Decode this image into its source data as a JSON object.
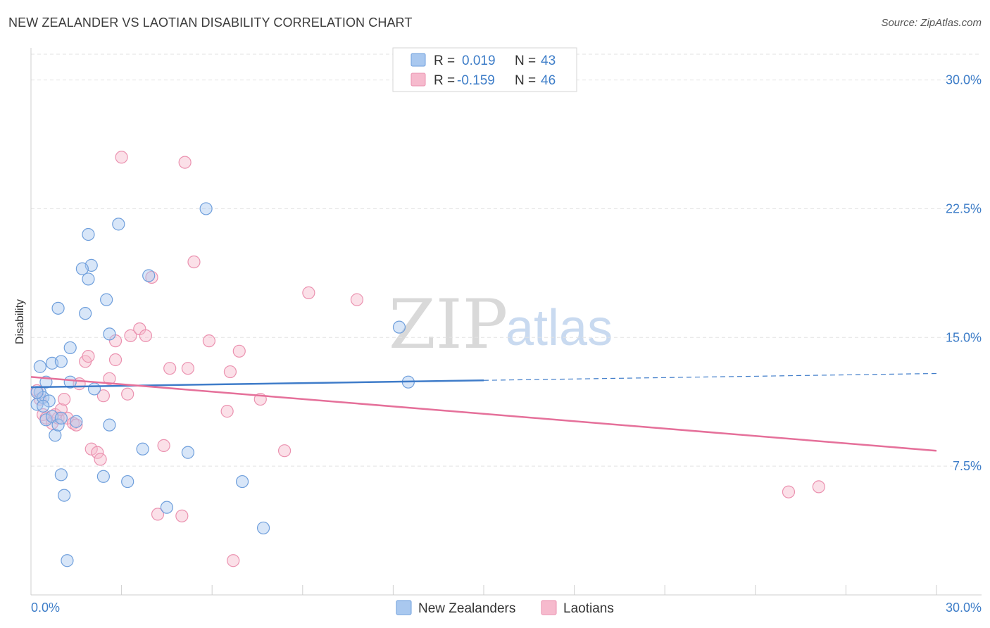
{
  "title": "NEW ZEALANDER VS LAOTIAN DISABILITY CORRELATION CHART",
  "source": "Source: ZipAtlas.com",
  "watermark": {
    "zip": "ZIP",
    "atlas": "atlas"
  },
  "legend": {
    "rows": [
      {
        "r_label": "R =",
        "r_value": "0.019",
        "n_label": "N =",
        "n_value": "43"
      },
      {
        "r_label": "R =",
        "r_value": "-0.159",
        "n_label": "N =",
        "n_value": "46"
      }
    ]
  },
  "bottom_legend": [
    "New Zealanders",
    "Laotians"
  ],
  "colors": {
    "blue_fill": "#a9c8ef",
    "blue_stroke": "#6f9fdc",
    "blue_line": "#3f7cc9",
    "pink_fill": "#f6bacd",
    "pink_stroke": "#eb92b0",
    "pink_line": "#e5709a",
    "axis_text": "#3d7dc8"
  },
  "chart_data": {
    "type": "scatter",
    "title": "NEW ZEALANDER VS LAOTIAN DISABILITY CORRELATION CHART",
    "xlabel": "",
    "ylabel": "Disability",
    "xlim": [
      0,
      30
    ],
    "ylim": [
      0,
      31.5
    ],
    "x_tick_labels": [
      "0.0%",
      "30.0%"
    ],
    "y_ticks": [
      7.5,
      15.0,
      22.5,
      30.0
    ],
    "y_tick_labels": [
      "7.5%",
      "15.0%",
      "22.5%",
      "30.0%"
    ],
    "series": [
      {
        "name": "New Zealanders",
        "color": "blue",
        "trend": {
          "x0": 0,
          "y0": 12.1,
          "x1": 15,
          "y1": 12.5,
          "dashed_to_x": 30,
          "dashed_to_y": 12.9
        },
        "points": [
          [
            0.2,
            11.1
          ],
          [
            0.3,
            11.8
          ],
          [
            0.4,
            11.5
          ],
          [
            0.5,
            10.2
          ],
          [
            0.6,
            11.3
          ],
          [
            0.7,
            10.4
          ],
          [
            0.8,
            9.3
          ],
          [
            0.9,
            9.9
          ],
          [
            1.0,
            7.0
          ],
          [
            1.1,
            5.8
          ],
          [
            1.2,
            2.0
          ],
          [
            1.3,
            12.4
          ],
          [
            0.7,
            13.5
          ],
          [
            1.0,
            13.6
          ],
          [
            1.3,
            14.4
          ],
          [
            0.9,
            16.7
          ],
          [
            1.8,
            16.4
          ],
          [
            2.0,
            19.2
          ],
          [
            1.7,
            19.0
          ],
          [
            1.9,
            18.4
          ],
          [
            1.9,
            21.0
          ],
          [
            2.5,
            17.2
          ],
          [
            2.9,
            21.6
          ],
          [
            3.9,
            18.6
          ],
          [
            2.1,
            12.0
          ],
          [
            2.6,
            15.2
          ],
          [
            2.6,
            9.9
          ],
          [
            2.4,
            6.9
          ],
          [
            3.2,
            6.6
          ],
          [
            3.7,
            8.5
          ],
          [
            4.5,
            5.1
          ],
          [
            5.2,
            8.3
          ],
          [
            5.8,
            22.5
          ],
          [
            7.0,
            6.6
          ],
          [
            7.7,
            3.9
          ],
          [
            12.2,
            15.6
          ],
          [
            12.5,
            12.4
          ],
          [
            0.3,
            13.3
          ],
          [
            0.5,
            12.4
          ],
          [
            1.5,
            10.1
          ],
          [
            0.2,
            11.8
          ],
          [
            1.0,
            10.3
          ],
          [
            0.4,
            11.0
          ]
        ]
      },
      {
        "name": "Laotians",
        "color": "pink",
        "trend": {
          "x0": 0,
          "y0": 12.7,
          "x1": 30,
          "y1": 8.4
        },
        "points": [
          [
            0.2,
            11.9
          ],
          [
            0.3,
            11.4
          ],
          [
            0.4,
            10.5
          ],
          [
            0.5,
            10.3
          ],
          [
            0.7,
            10.0
          ],
          [
            0.8,
            10.5
          ],
          [
            0.9,
            10.3
          ],
          [
            1.0,
            10.8
          ],
          [
            1.1,
            11.4
          ],
          [
            1.2,
            10.3
          ],
          [
            1.4,
            10.0
          ],
          [
            1.5,
            9.9
          ],
          [
            1.6,
            12.3
          ],
          [
            1.8,
            13.6
          ],
          [
            1.9,
            13.9
          ],
          [
            2.0,
            8.5
          ],
          [
            2.2,
            8.3
          ],
          [
            2.3,
            7.9
          ],
          [
            2.4,
            11.6
          ],
          [
            2.6,
            12.6
          ],
          [
            2.8,
            13.7
          ],
          [
            2.8,
            14.8
          ],
          [
            3.0,
            25.5
          ],
          [
            3.2,
            11.7
          ],
          [
            3.3,
            15.1
          ],
          [
            3.6,
            15.5
          ],
          [
            3.8,
            15.1
          ],
          [
            4.0,
            18.5
          ],
          [
            4.2,
            4.7
          ],
          [
            4.4,
            8.7
          ],
          [
            4.6,
            13.2
          ],
          [
            5.0,
            4.6
          ],
          [
            5.2,
            13.2
          ],
          [
            5.4,
            19.4
          ],
          [
            5.1,
            25.2
          ],
          [
            5.9,
            14.8
          ],
          [
            6.5,
            10.7
          ],
          [
            6.6,
            13.0
          ],
          [
            6.9,
            14.2
          ],
          [
            6.7,
            2.0
          ],
          [
            7.6,
            11.4
          ],
          [
            8.4,
            8.4
          ],
          [
            9.2,
            17.6
          ],
          [
            10.8,
            17.2
          ],
          [
            25.1,
            6.0
          ],
          [
            26.1,
            6.3
          ]
        ]
      }
    ]
  }
}
